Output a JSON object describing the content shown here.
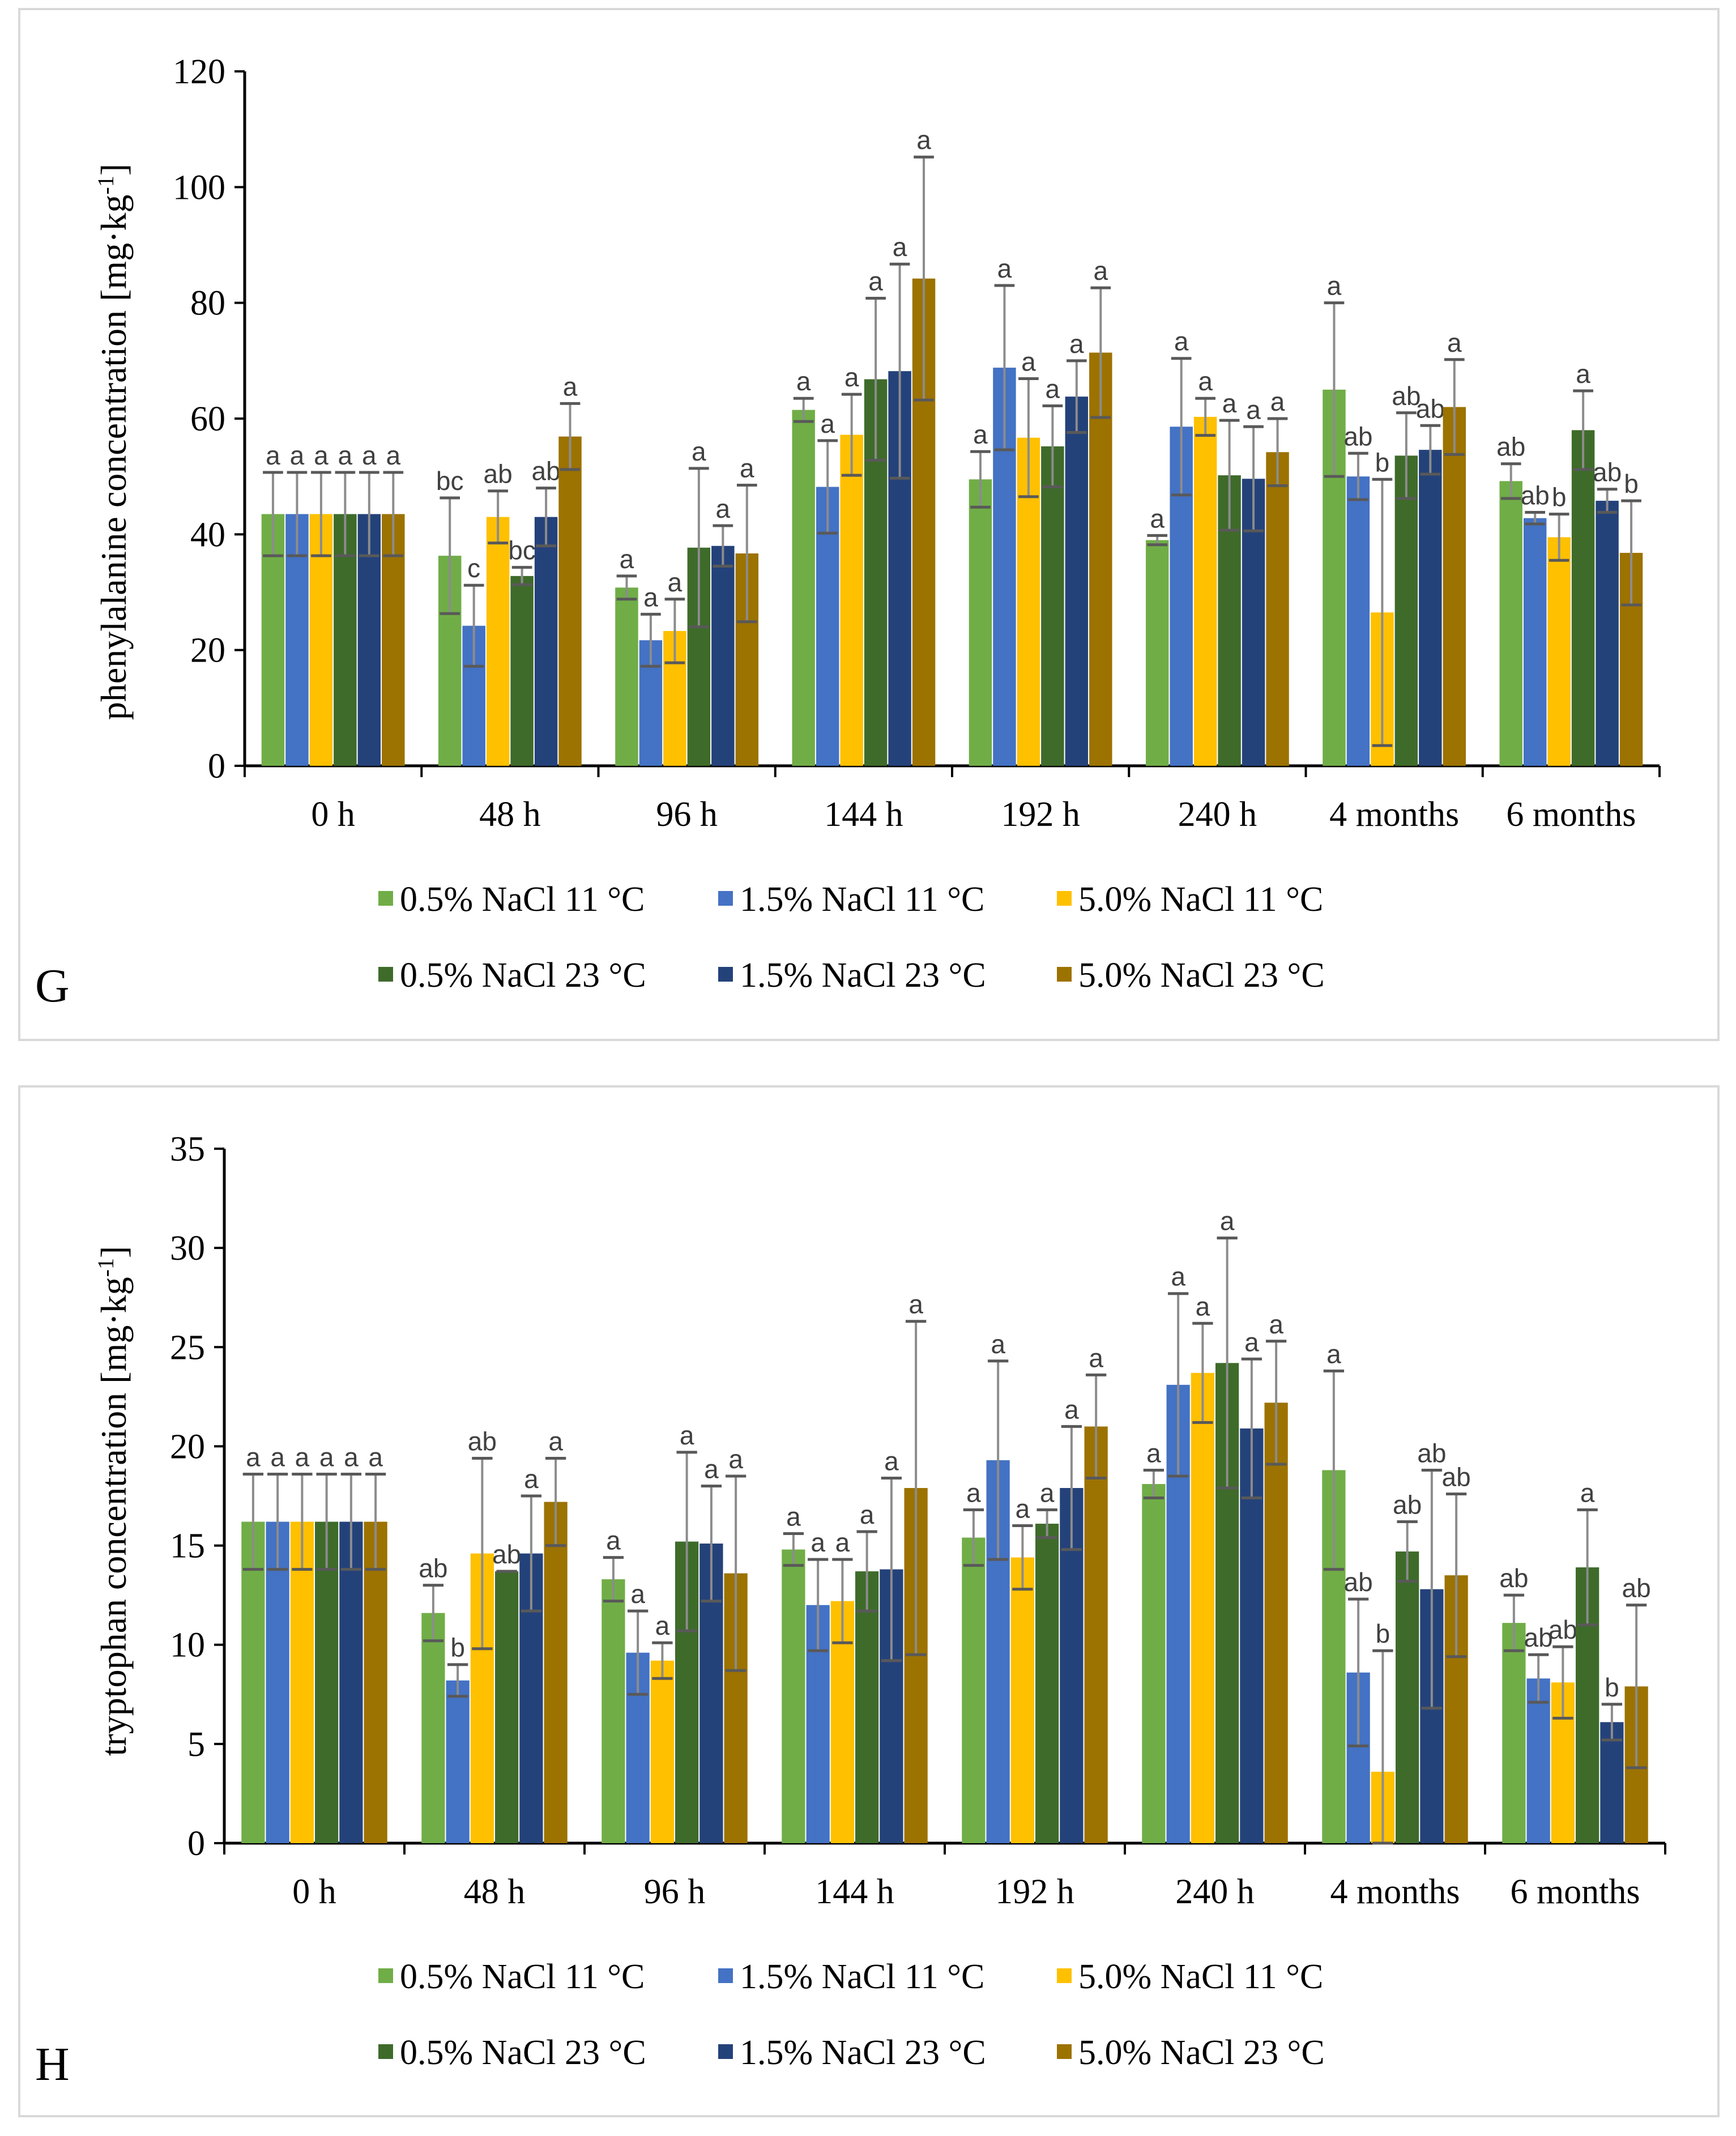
{
  "series_colors": [
    "#70AD47",
    "#4472C4",
    "#FFC000",
    "#3E6B2A",
    "#24427A",
    "#9C7200"
  ],
  "chart_data": [
    {
      "type": "bar",
      "panel": "G",
      "ylabel_main": "phenylalanine concentration [mg·kg",
      "ylabel_sup": "-1",
      "ylabel_end": "]",
      "ylim": [
        0,
        120
      ],
      "yticks": [
        0,
        20,
        40,
        60,
        80,
        100,
        120
      ],
      "ytick_labels": [
        "0",
        "20",
        "40",
        "60",
        "80",
        "100",
        "120"
      ],
      "categories": [
        "0 h",
        "48 h",
        "96 h",
        "144 h",
        "192 h",
        "240 h",
        "4 months",
        "6 months"
      ],
      "legend_position": "bottom",
      "series": [
        {
          "name": "0.5% NaCl 11 °C",
          "values": [
            43.5,
            36.3,
            30.8,
            61.5,
            49.5,
            39.0,
            65.0,
            49.2
          ],
          "errors": [
            7.2,
            10.0,
            2.0,
            2.0,
            4.8,
            0.8,
            15.0,
            3.0
          ],
          "labels": [
            "a",
            "bc",
            "a",
            "a",
            "a",
            "a",
            "a",
            "ab"
          ]
        },
        {
          "name": "1.5% NaCl 11 °C",
          "values": [
            43.5,
            24.2,
            21.7,
            48.2,
            68.8,
            58.6,
            50.0,
            42.8
          ],
          "errors": [
            7.2,
            7.0,
            4.5,
            8.0,
            14.2,
            11.8,
            4.0,
            1.0
          ],
          "labels": [
            "a",
            "c",
            "a",
            "a",
            "a",
            "a",
            "ab",
            "ab"
          ]
        },
        {
          "name": "5.0% NaCl 11 °C",
          "values": [
            43.5,
            43.0,
            23.3,
            57.2,
            56.7,
            60.3,
            26.5,
            39.5
          ],
          "errors": [
            7.2,
            4.5,
            5.5,
            7.0,
            10.2,
            3.2,
            23.0,
            4.0
          ],
          "labels": [
            "a",
            "ab",
            "a",
            "a",
            "a",
            "a",
            "b",
            "b"
          ]
        },
        {
          "name": "0.5% NaCl 23 °C",
          "values": [
            43.5,
            32.8,
            37.7,
            66.8,
            55.2,
            50.2,
            53.6,
            58.0
          ],
          "errors": [
            7.2,
            1.5,
            13.7,
            14.0,
            7.0,
            9.5,
            7.4,
            6.8
          ],
          "labels": [
            "a",
            "bc",
            "a",
            "a",
            "a",
            "a",
            "ab",
            "a"
          ]
        },
        {
          "name": "1.5% NaCl 23 °C",
          "values": [
            43.5,
            43.0,
            38.0,
            68.2,
            63.8,
            49.6,
            54.6,
            45.8
          ],
          "errors": [
            7.2,
            5.0,
            3.5,
            18.5,
            6.2,
            9.0,
            4.2,
            2.0
          ],
          "labels": [
            "a",
            "ab",
            "a",
            "a",
            "a",
            "a",
            "ab",
            "ab"
          ]
        },
        {
          "name": "5.0% NaCl 23 °C",
          "values": [
            43.5,
            56.9,
            36.7,
            84.2,
            71.4,
            54.2,
            62.0,
            36.8
          ],
          "errors": [
            7.2,
            5.7,
            11.8,
            21.0,
            11.2,
            5.8,
            8.2,
            9.0
          ],
          "labels": [
            "a",
            "a",
            "a",
            "a",
            "a",
            "a",
            "a",
            "b"
          ]
        }
      ]
    },
    {
      "type": "bar",
      "panel": "H",
      "ylabel_main": "tryptophan concentration [mg·kg",
      "ylabel_sup": "-1",
      "ylabel_end": "]",
      "ylim": [
        0,
        35
      ],
      "yticks": [
        0,
        5,
        10,
        15,
        20,
        25,
        30,
        35
      ],
      "ytick_labels": [
        "0",
        "5",
        "10",
        "15",
        "20",
        "25",
        "30",
        "35"
      ],
      "categories": [
        "0 h",
        "48 h",
        "96 h",
        "144 h",
        "192 h",
        "240 h",
        "4 months",
        "6 months"
      ],
      "legend_position": "bottom",
      "series": [
        {
          "name": "0.5% NaCl 11 °C",
          "values": [
            16.2,
            11.6,
            13.3,
            14.8,
            15.4,
            18.1,
            18.8,
            11.1
          ],
          "errors": [
            2.4,
            1.4,
            1.1,
            0.8,
            1.4,
            0.7,
            5.0,
            1.4
          ],
          "labels": [
            "a",
            "ab",
            "a",
            "a",
            "a",
            "a",
            "a",
            "ab"
          ]
        },
        {
          "name": "1.5% NaCl 11 °C",
          "values": [
            16.2,
            8.2,
            9.6,
            12.0,
            19.3,
            23.1,
            8.6,
            8.3
          ],
          "errors": [
            2.4,
            0.8,
            2.1,
            2.3,
            5.0,
            4.6,
            3.7,
            1.2
          ],
          "labels": [
            "a",
            "b",
            "a",
            "a",
            "a",
            "a",
            "ab",
            "ab"
          ]
        },
        {
          "name": "5.0% NaCl 11 °C",
          "values": [
            16.2,
            14.6,
            9.2,
            12.2,
            14.4,
            23.7,
            3.6,
            8.1
          ],
          "errors": [
            2.4,
            4.8,
            0.9,
            2.1,
            1.6,
            2.5,
            6.1,
            1.8
          ],
          "labels": [
            "a",
            "ab",
            "a",
            "a",
            "a",
            "a",
            "b",
            "ab"
          ]
        },
        {
          "name": "0.5% NaCl 23 °C",
          "values": [
            16.2,
            13.7,
            15.2,
            13.7,
            16.1,
            24.2,
            14.7,
            13.9
          ],
          "errors": [
            2.4,
            0.0,
            4.5,
            2.0,
            0.7,
            6.3,
            1.5,
            2.9
          ],
          "labels": [
            "a",
            "ab",
            "a",
            "a",
            "a",
            "a",
            "ab",
            "a"
          ]
        },
        {
          "name": "1.5% NaCl 23 °C",
          "values": [
            16.2,
            14.6,
            15.1,
            13.8,
            17.9,
            20.9,
            12.8,
            6.1
          ],
          "errors": [
            2.4,
            2.9,
            2.9,
            4.6,
            3.1,
            3.5,
            6.0,
            0.9
          ],
          "labels": [
            "a",
            "a",
            "a",
            "a",
            "a",
            "a",
            "ab",
            "b"
          ]
        },
        {
          "name": "5.0% NaCl 23 °C",
          "values": [
            16.2,
            17.2,
            13.6,
            17.9,
            21.0,
            22.2,
            13.5,
            7.9
          ],
          "errors": [
            2.4,
            2.2,
            4.9,
            8.4,
            2.6,
            3.1,
            4.1,
            4.1
          ],
          "labels": [
            "a",
            "a",
            "a",
            "a",
            "a",
            "a",
            "ab",
            "ab"
          ]
        }
      ]
    }
  ]
}
